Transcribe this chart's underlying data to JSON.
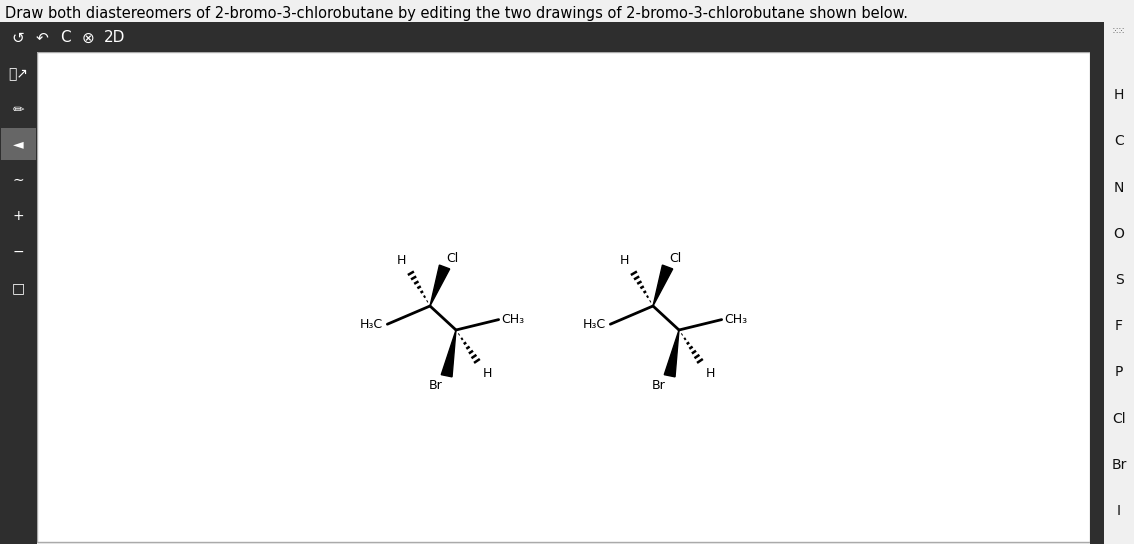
{
  "title_text": "Draw both diastereomers of 2-bromo-3-chlorobutane by editing the two drawings of 2-bromo-3-chlorobutane shown below.",
  "title_fontsize": 10.5,
  "title_color": "#000000",
  "bg_color": "#f0f0f0",
  "toolbar_bg": "#2e2e2e",
  "left_sidebar_bg": "#2e2e2e",
  "right_panel_bg": "#2e2e2e",
  "drawing_area_bg": "#ffffff",
  "label_fontsize": 8.5,
  "right_labels": [
    "H",
    "C",
    "N",
    "O",
    "S",
    "F",
    "P",
    "Cl",
    "Br",
    "I"
  ]
}
